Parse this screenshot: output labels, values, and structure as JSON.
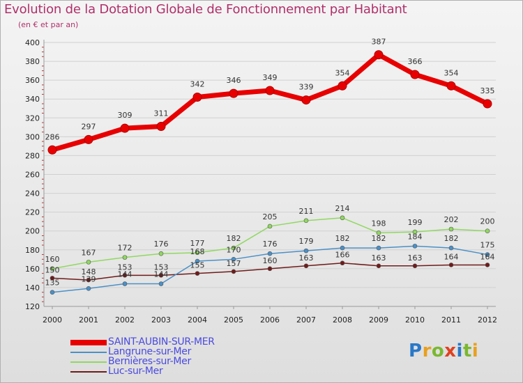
{
  "title": "Evolution de la Dotation Globale de Fonctionnement par Habitant",
  "subtitle": "(en € et par an)",
  "logo": {
    "text": "Proxiti",
    "colors": [
      "#2a78c8",
      "#e8a020",
      "#7ab830",
      "#e04020",
      "#2a78c8",
      "#7ab830",
      "#e8a020"
    ]
  },
  "chart_data": {
    "type": "line",
    "title": "Evolution de la Dotation Globale de Fonctionnement par Habitant",
    "subtitle": "(en € et par an)",
    "x": [
      "2000",
      "2001",
      "2002",
      "2003",
      "2004",
      "2005",
      "2006",
      "2007",
      "2008",
      "2009",
      "2010",
      "2011",
      "2012"
    ],
    "ylim": [
      120,
      400
    ],
    "yticks": [
      120,
      140,
      160,
      180,
      200,
      220,
      240,
      260,
      280,
      300,
      320,
      340,
      360,
      380,
      400
    ],
    "grid": "horizontal",
    "legend_position": "bottom-left",
    "series": [
      {
        "name": "SAINT-AUBIN-SUR-MER",
        "color": "#e80000",
        "width": 7,
        "marker": 6,
        "labels": true,
        "values": [
          286,
          297,
          309,
          311,
          342,
          346,
          349,
          339,
          354,
          387,
          366,
          354,
          335
        ]
      },
      {
        "name": "Langrune-sur-Mer",
        "color": "#4a90c8",
        "width": 1.5,
        "marker": 3,
        "labels": true,
        "values": [
          135,
          139,
          144,
          144,
          168,
          170,
          176,
          179,
          182,
          182,
          184,
          182,
          175
        ]
      },
      {
        "name": "Bernières-sur-Mer",
        "color": "#90d860",
        "width": 1.5,
        "marker": 3,
        "labels": true,
        "values": [
          160,
          167,
          172,
          176,
          177,
          182,
          205,
          211,
          214,
          198,
          199,
          202,
          200
        ]
      },
      {
        "name": "Luc-sur-Mer",
        "color": "#701a1a",
        "width": 1.5,
        "marker": 3,
        "labels": false,
        "values": [
          150,
          148,
          153,
          153,
          155,
          157,
          160,
          163,
          166,
          163,
          163,
          164,
          164
        ]
      }
    ],
    "extra_labels": [
      {
        "series": 3,
        "index": 0,
        "text": "150"
      },
      {
        "series": 3,
        "index": 1,
        "text": "148"
      },
      {
        "series": 3,
        "index": 2,
        "text": "153"
      },
      {
        "series": 3,
        "index": 3,
        "text": "153"
      },
      {
        "series": 3,
        "index": 4,
        "text": "155"
      },
      {
        "series": 3,
        "index": 5,
        "text": "157"
      },
      {
        "series": 3,
        "index": 6,
        "text": "160"
      },
      {
        "series": 3,
        "index": 7,
        "text": "163"
      },
      {
        "series": 3,
        "index": 8,
        "text": "166"
      },
      {
        "series": 3,
        "index": 9,
        "text": "163"
      },
      {
        "series": 3,
        "index": 10,
        "text": "163"
      },
      {
        "series": 3,
        "index": 11,
        "text": "164"
      },
      {
        "series": 3,
        "index": 12,
        "text": "164"
      }
    ]
  }
}
